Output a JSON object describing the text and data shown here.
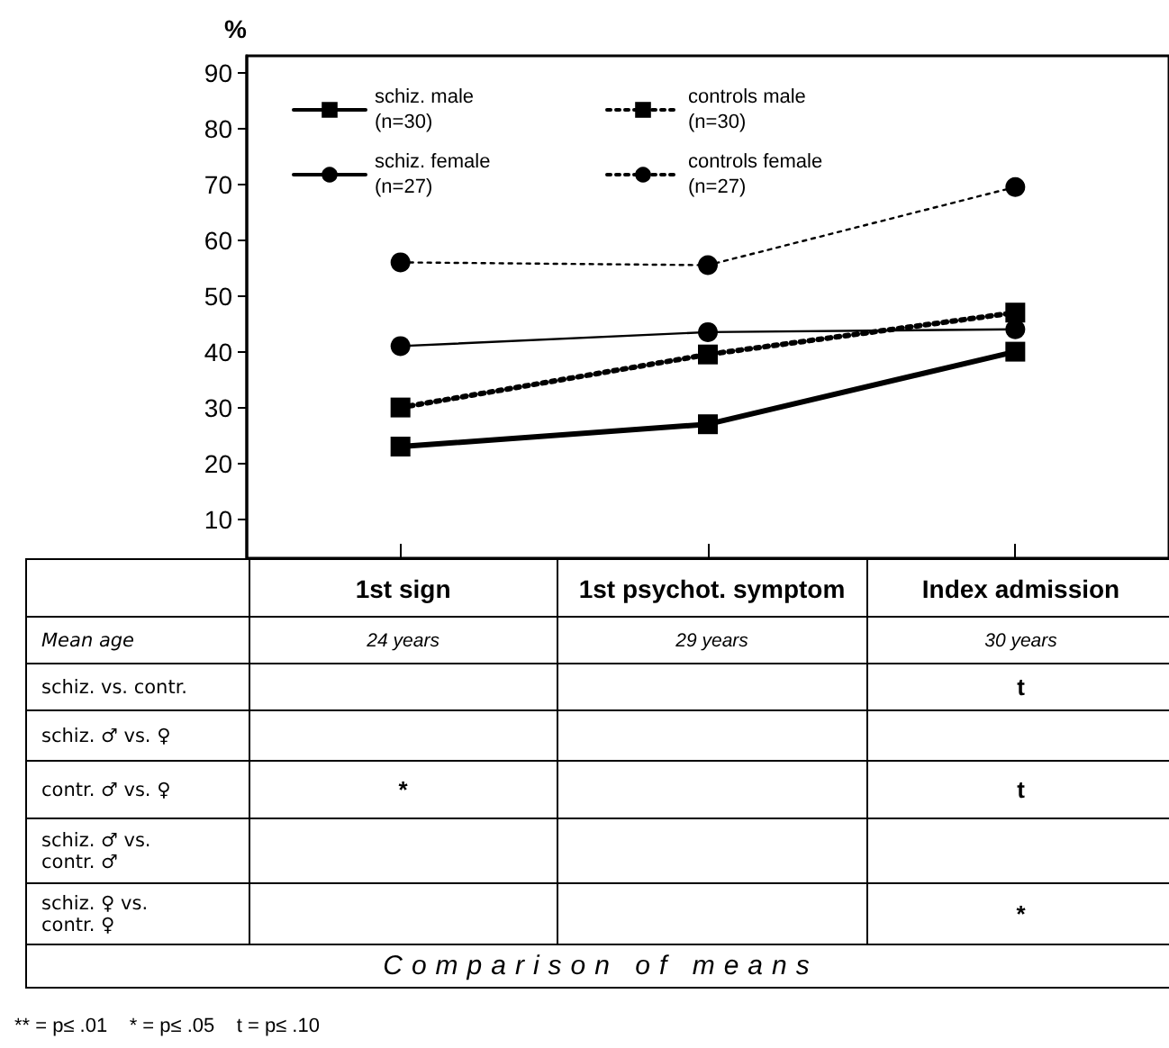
{
  "chart_data": {
    "type": "line",
    "ylabel": "%",
    "categories": [
      "1st sign",
      "1st psychot. symptom",
      "Index admission"
    ],
    "series": [
      {
        "name": "schiz. male\n(n=30)",
        "color": "#000000",
        "values": [
          23,
          27,
          40
        ],
        "marker": "square",
        "line_style": "solid"
      },
      {
        "name": "controls male\n(n=30)",
        "color": "#000000",
        "values": [
          30,
          39.5,
          47
        ],
        "marker": "square",
        "line_style": "dotted"
      },
      {
        "name": "schiz. female\n(n=27)",
        "color": "#000000",
        "values": [
          41,
          43.5,
          44
        ],
        "marker": "circle",
        "line_style": "solid"
      },
      {
        "name": "controls female\n(n=27)",
        "color": "#000000",
        "values": [
          56,
          55.5,
          69.5
        ],
        "marker": "circle",
        "line_style": "dotted"
      }
    ],
    "ylim": [
      3,
      93
    ],
    "yticks": [
      10,
      20,
      30,
      40,
      50,
      60,
      70,
      80,
      90
    ],
    "grid": false,
    "legend": "top left",
    "annotations": [
      "Mean age",
      "24 years",
      "29 years",
      "30 years",
      "schiz. vs. contr.",
      null,
      null,
      "t",
      "schiz. ♂ vs. ♀",
      null,
      null,
      null,
      "contr. ♂ vs. ♀",
      "*",
      null,
      "t",
      "schiz. ♂ vs.\ncontr. ♂",
      null,
      null,
      null,
      "schiz. ♀ vs.\ncontr. ♀",
      null,
      null,
      "*",
      "Comparison of means",
      "** = p≤ .01    * = p≤ .05    t = p≤ .10"
    ]
  }
}
